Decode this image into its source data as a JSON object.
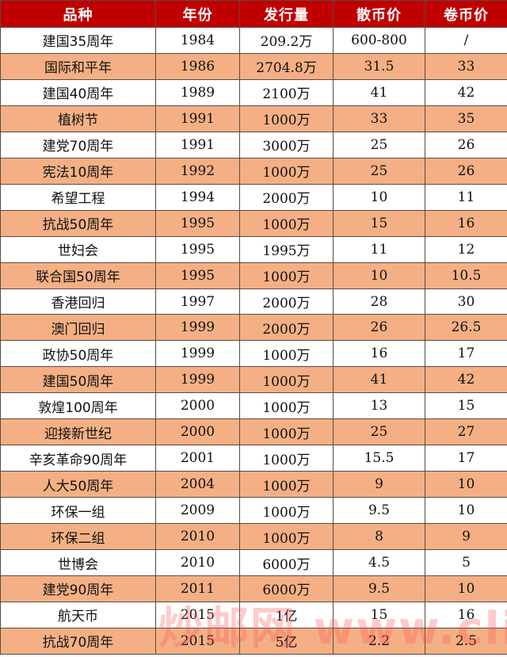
{
  "headers": [
    "品种",
    "年份",
    "发行量",
    "散币价",
    "卷币价"
  ],
  "rows": [
    [
      "建国35周年",
      "1984",
      "209.2万",
      "600-800",
      "/"
    ],
    [
      "国际和平年",
      "1986",
      "2704.8万",
      "31.5",
      "33"
    ],
    [
      "建国40周年",
      "1989",
      "2100万",
      "41",
      "42"
    ],
    [
      "植树节",
      "1991",
      "1000万",
      "33",
      "35"
    ],
    [
      "建党70周年",
      "1991",
      "3000万",
      "25",
      "26"
    ],
    [
      "宪法10周年",
      "1992",
      "1000万",
      "25",
      "26"
    ],
    [
      "希望工程",
      "1994",
      "2000万",
      "10",
      "11"
    ],
    [
      "抗战50周年",
      "1995",
      "1000万",
      "15",
      "16"
    ],
    [
      "世妇会",
      "1995",
      "1995万",
      "11",
      "12"
    ],
    [
      "联合国50周年",
      "1995",
      "1000万",
      "10",
      "10.5"
    ],
    [
      "香港回归",
      "1997",
      "2000万",
      "28",
      "30"
    ],
    [
      "澳门回归",
      "1999",
      "2000万",
      "26",
      "26.5"
    ],
    [
      "政协50周年",
      "1999",
      "1000万",
      "16",
      "17"
    ],
    [
      "建国50周年",
      "1999",
      "1000万",
      "41",
      "42"
    ],
    [
      "敦煌100周年",
      "2000",
      "1000万",
      "13",
      "15"
    ],
    [
      "迎接新世纪",
      "2000",
      "1000万",
      "25",
      "27"
    ],
    [
      "辛亥革命90周年",
      "2001",
      "1000万",
      "15.5",
      "17"
    ],
    [
      "人大50周年",
      "2004",
      "1000万",
      "9",
      "10"
    ],
    [
      "环保一组",
      "2009",
      "1000万",
      "9.5",
      "10"
    ],
    [
      "环保二组",
      "2010",
      "1000万",
      "8",
      "9"
    ],
    [
      "世博会",
      "2010",
      "6000万",
      "4.5",
      "5"
    ],
    [
      "建党90周年",
      "2011",
      "6000万",
      "9.5",
      "10"
    ],
    [
      "航天币",
      "2015",
      "1亿",
      "15",
      "16"
    ],
    [
      "抗战70周年",
      "2015",
      "5亿",
      "2.2",
      "2.5"
    ]
  ],
  "colors": {
    "header_bg": "#c00000",
    "header_text": "#ffffff",
    "row_odd": "#ffffff",
    "row_even": "#f4b084",
    "border": "#5a4a44"
  },
  "watermark": "炒邮网 www.cliyou.net"
}
